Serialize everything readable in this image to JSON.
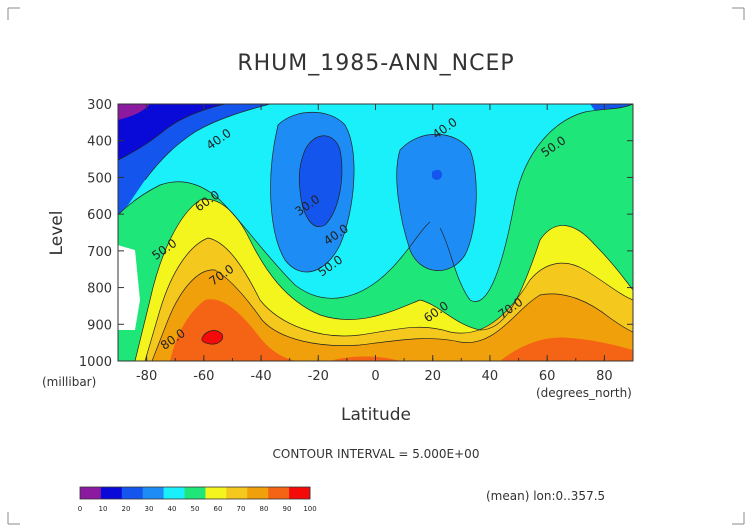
{
  "chart_data": {
    "type": "contour",
    "title": "RHUM_1985-ANN_NCEP",
    "xlabel": "Latitude",
    "x_units": "(degrees_north)",
    "ylabel": "Level",
    "y_units": "(millibar)",
    "xlim": [
      -90,
      90
    ],
    "ylim": [
      1000,
      300
    ],
    "x_ticks": [
      -80,
      -60,
      -40,
      -20,
      0,
      20,
      40,
      60,
      80
    ],
    "y_ticks": [
      300,
      400,
      500,
      600,
      700,
      800,
      900,
      1000
    ],
    "contour_interval_text": "CONTOUR INTERVAL = 5.000E+00",
    "footnote": "(mean) lon:0..357.5",
    "colorbar": {
      "levels": [
        0,
        10,
        20,
        30,
        40,
        50,
        60,
        70,
        80,
        90,
        100
      ],
      "colors": [
        "#8b1aa0",
        "#0a0ad8",
        "#1455ee",
        "#1e8cf5",
        "#19f0fa",
        "#1ee678",
        "#f5f51e",
        "#f5c81e",
        "#f0a00a",
        "#f56414",
        "#f50a0a"
      ]
    },
    "contour_labels": [
      {
        "value": "40.0",
        "lat": -54,
        "lev": 405
      },
      {
        "value": "40.0",
        "lat": 25,
        "lev": 375
      },
      {
        "value": "50.0",
        "lat": 63,
        "lev": 425
      },
      {
        "value": "60.0",
        "lat": -58,
        "lev": 573
      },
      {
        "value": "30.0",
        "lat": -23,
        "lev": 585
      },
      {
        "value": "40.0",
        "lat": -13,
        "lev": 665
      },
      {
        "value": "50.0",
        "lat": -15,
        "lev": 750
      },
      {
        "value": "50.0",
        "lat": -73,
        "lev": 705
      },
      {
        "value": "70.0",
        "lat": -53,
        "lev": 775
      },
      {
        "value": "60.0",
        "lat": 22,
        "lev": 875
      },
      {
        "value": "70.0",
        "lat": 48,
        "lev": 865
      },
      {
        "value": "80.0",
        "lat": -70,
        "lev": 950
      }
    ]
  }
}
